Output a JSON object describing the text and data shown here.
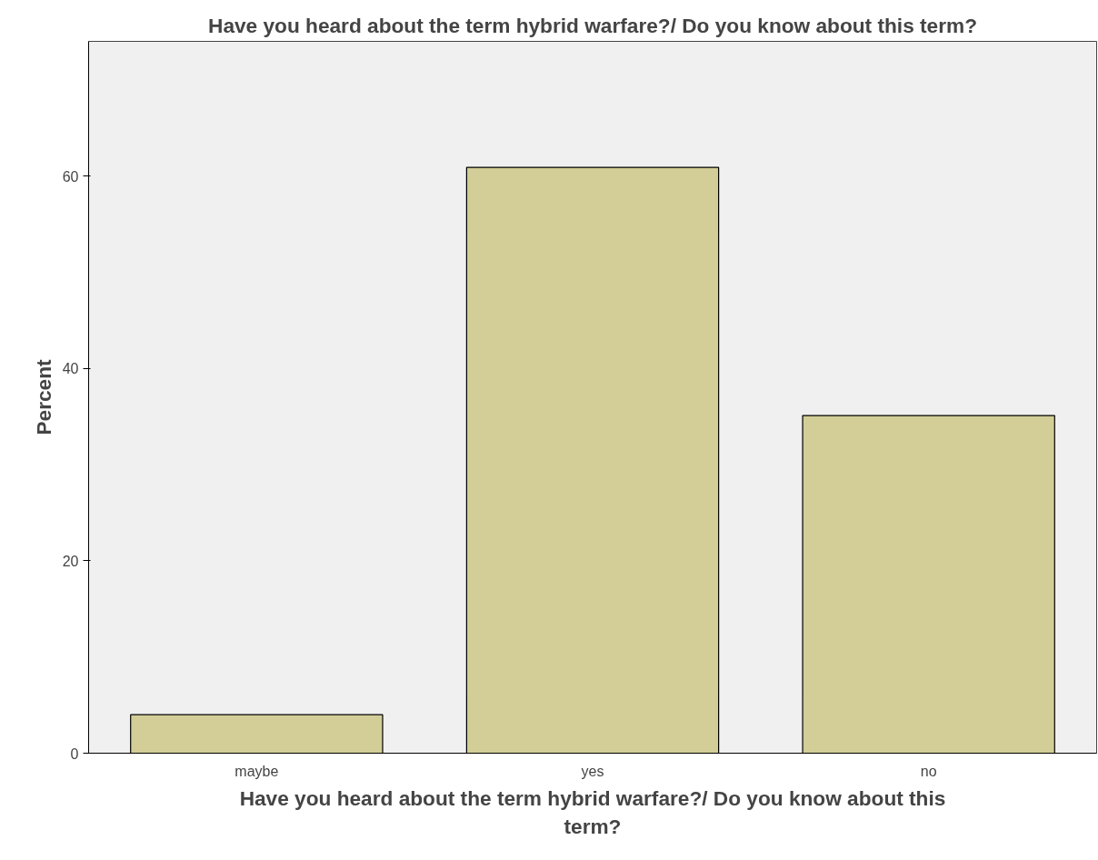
{
  "chart_data": {
    "type": "bar",
    "title": "Have you heard about the term hybrid warfare?/ Do you know about this term?",
    "xlabel": "Have you heard about the term hybrid warfare?/ Do you know about this term?",
    "ylabel": "Percent",
    "categories": [
      "maybe",
      "yes",
      "no"
    ],
    "values": [
      4.0,
      60.9,
      35.1
    ],
    "color": "#d3ce97",
    "ylim": [
      0,
      74
    ],
    "yticks": [
      0,
      20,
      40,
      60
    ],
    "grid": false
  }
}
